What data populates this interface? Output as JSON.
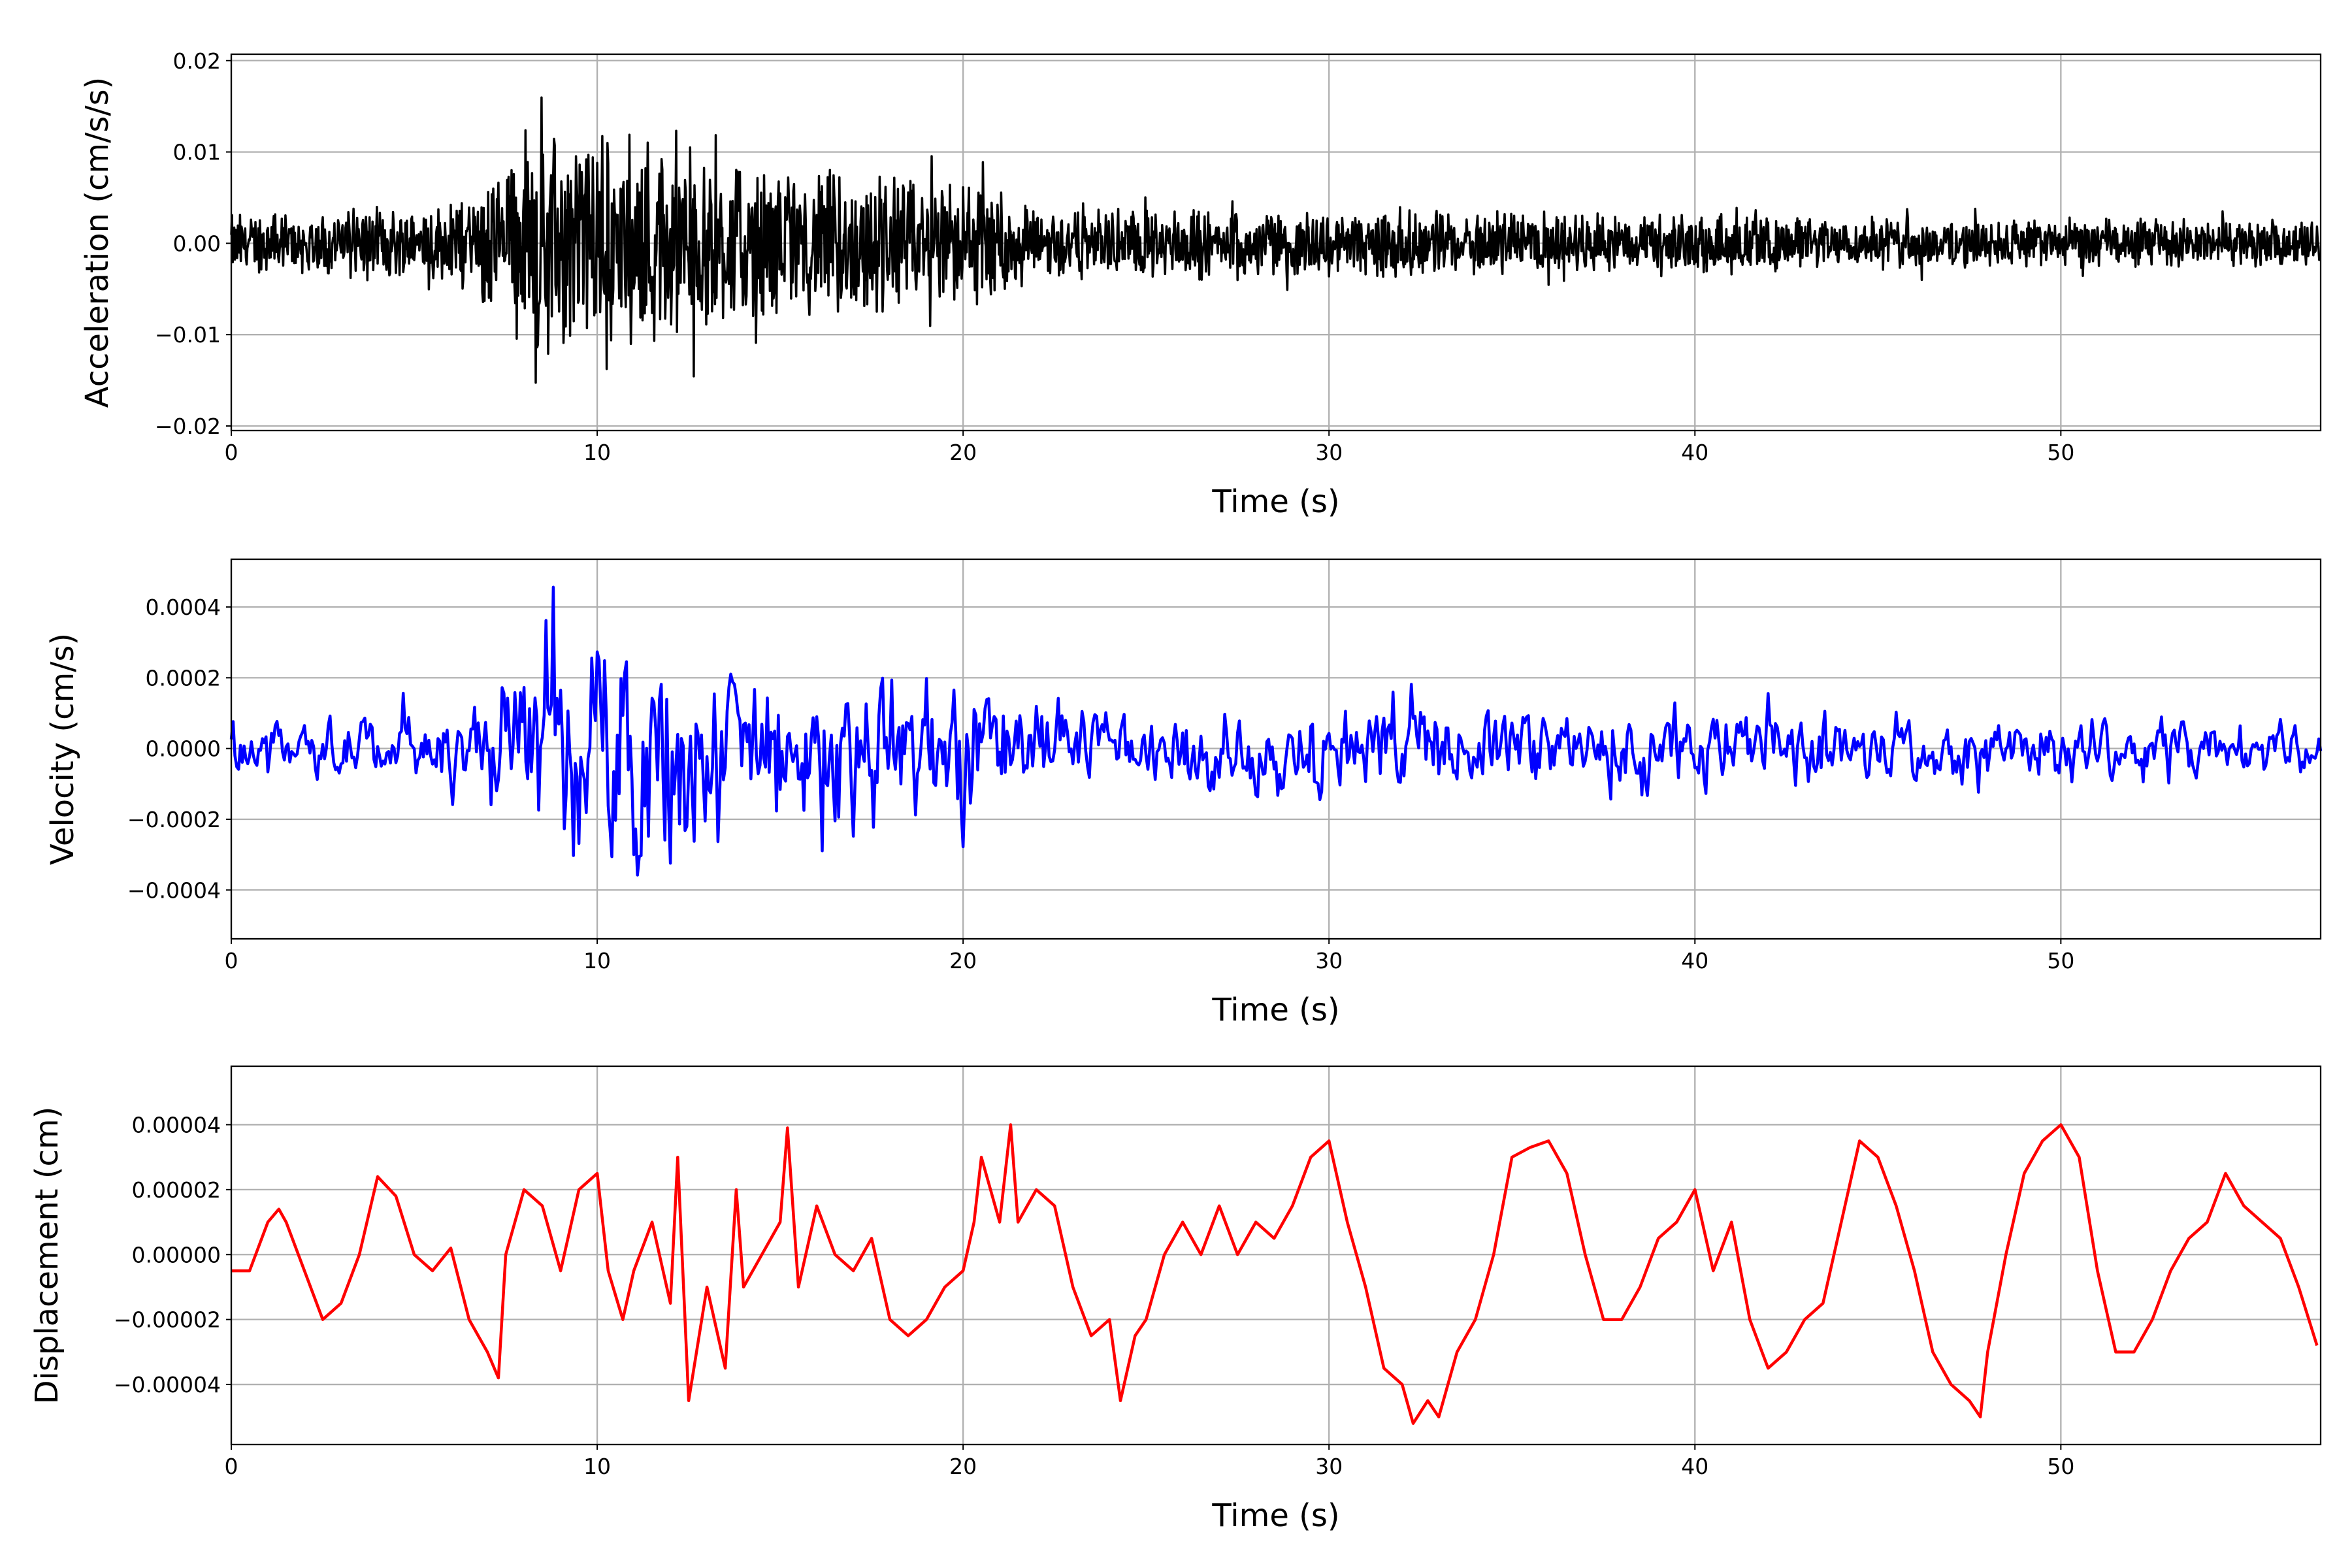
{
  "chart_data": [
    {
      "type": "line",
      "title": "",
      "xlabel": "Time (s)",
      "ylabel": "Acceleration (cm/s/s)",
      "xlim": [
        0,
        57.1
      ],
      "ylim": [
        -0.0205,
        0.0207
      ],
      "xticks": [
        0,
        10,
        20,
        30,
        40,
        50
      ],
      "yticks": [
        -0.02,
        -0.01,
        0.0,
        0.01,
        0.02
      ],
      "ytick_labels": [
        "−0.02",
        "−0.01",
        "0.00",
        "0.01",
        "0.02"
      ],
      "grid": true,
      "color": "#000000",
      "sample_interval_s": 0.02,
      "envelope": {
        "t": [
          0,
          6,
          7,
          8.5,
          12.5,
          13,
          17,
          21,
          22,
          30,
          40,
          57.1
        ],
        "amplitude": [
          0.005,
          0.006,
          0.012,
          0.018,
          0.017,
          0.013,
          0.011,
          0.01,
          0.006,
          0.0055,
          0.0045,
          0.0035
        ]
      }
    },
    {
      "type": "line",
      "title": "",
      "xlabel": "Time (s)",
      "ylabel": "Velocity (cm/s)",
      "xlim": [
        0,
        57.1
      ],
      "ylim": [
        -0.000538,
        0.000535
      ],
      "xticks": [
        0,
        10,
        20,
        30,
        40,
        50
      ],
      "yticks": [
        -0.0004,
        -0.0002,
        0.0,
        0.0002,
        0.0004
      ],
      "ytick_labels": [
        "−0.0004",
        "−0.0002",
        "0.0000",
        "0.0002",
        "0.0004"
      ],
      "grid": true,
      "color": "#0000ff",
      "sample_interval_s": 0.05,
      "envelope": {
        "t": [
          0,
          6,
          7,
          8.5,
          12.5,
          14,
          18,
          21,
          22,
          30,
          41,
          57.1
        ],
        "amplitude": [
          0.00012,
          0.00013,
          0.0003,
          0.00044,
          0.00046,
          0.00036,
          0.00032,
          0.0003,
          0.00018,
          0.00018,
          0.00016,
          0.0001
        ]
      }
    },
    {
      "type": "line",
      "title": "",
      "xlabel": "Time (s)",
      "ylabel": "Displacement (cm)",
      "xlim": [
        0,
        57.1
      ],
      "ylim": [
        -5.85e-05,
        5.8e-05
      ],
      "xticks": [
        0,
        10,
        20,
        30,
        40,
        50
      ],
      "yticks": [
        -4e-05,
        -2e-05,
        0.0,
        2e-05,
        4e-05
      ],
      "ytick_labels": [
        "−0.00004",
        "−0.00002",
        "0.00000",
        "0.00002",
        "0.00004"
      ],
      "grid": true,
      "color": "#ff0000",
      "x": [
        0,
        0.5,
        1,
        1.3,
        1.5,
        2,
        2.5,
        3,
        3.5,
        4,
        4.5,
        5,
        5.5,
        6,
        6.5,
        7,
        7.3,
        7.5,
        8,
        8.5,
        9,
        9.5,
        10,
        10.3,
        10.7,
        11,
        11.5,
        12,
        12.2,
        12.5,
        13,
        13.5,
        13.8,
        14,
        14.5,
        15,
        15.2,
        15.5,
        16,
        16.5,
        17,
        17.5,
        18,
        18.5,
        19,
        19.5,
        20,
        20.3,
        20.5,
        21,
        21.3,
        21.5,
        22,
        22.5,
        23,
        23.5,
        24,
        24.3,
        24.7,
        25,
        25.5,
        26,
        26.5,
        27,
        27.5,
        28,
        28.5,
        29,
        29.5,
        30,
        30.5,
        31,
        31.5,
        32,
        32.3,
        32.7,
        33,
        33.5,
        34,
        34.5,
        35,
        35.5,
        36,
        36.5,
        37,
        37.5,
        38,
        38.5,
        39,
        39.5,
        40,
        40.5,
        41,
        41.5,
        42,
        42.5,
        43,
        43.5,
        44,
        44.5,
        45,
        45.5,
        46,
        46.5,
        47,
        47.5,
        47.8,
        48,
        48.5,
        49,
        49.5,
        50,
        50.5,
        51,
        51.5,
        52,
        52.5,
        53,
        53.5,
        54,
        54.5,
        55,
        55.5,
        56,
        56.5,
        57
      ],
      "y_e5": [
        -0.5,
        -0.5,
        1,
        1.4,
        1,
        -0.5,
        -2,
        -1.5,
        0,
        2.4,
        1.8,
        0,
        -0.5,
        0.2,
        -2,
        -3,
        -3.8,
        0,
        2,
        1.5,
        -0.5,
        2,
        2.5,
        -0.5,
        -2,
        -0.5,
        1,
        -1.5,
        3,
        -4.5,
        -1,
        -3.5,
        2,
        -1,
        0,
        1,
        3.9,
        -1,
        1.5,
        0,
        -0.5,
        0.5,
        -2,
        -2.5,
        -2,
        -1,
        -0.5,
        1,
        3,
        1,
        4,
        1,
        2,
        1.5,
        -1,
        -2.5,
        -2,
        -4.5,
        -2.5,
        -2,
        0,
        1,
        0,
        1.5,
        0,
        1,
        0.5,
        1.5,
        3,
        3.5,
        1,
        -1,
        -3.5,
        -4,
        -5.2,
        -4.5,
        -5,
        -3,
        -2,
        0,
        3,
        3.3,
        3.5,
        2.5,
        0,
        -2,
        -2,
        -1,
        0.5,
        1,
        2,
        -0.5,
        1,
        -2,
        -3.5,
        -3,
        -2,
        -1.5,
        1,
        3.5,
        3,
        1.5,
        -0.5,
        -3,
        -4,
        -4.5,
        -5,
        -3,
        0,
        2.5,
        3.5,
        4,
        3,
        -0.5,
        -3,
        -3,
        -2,
        -0.5,
        0.5,
        1,
        2.5,
        1.5,
        1,
        0.5,
        -1,
        -2.8
      ]
    }
  ]
}
